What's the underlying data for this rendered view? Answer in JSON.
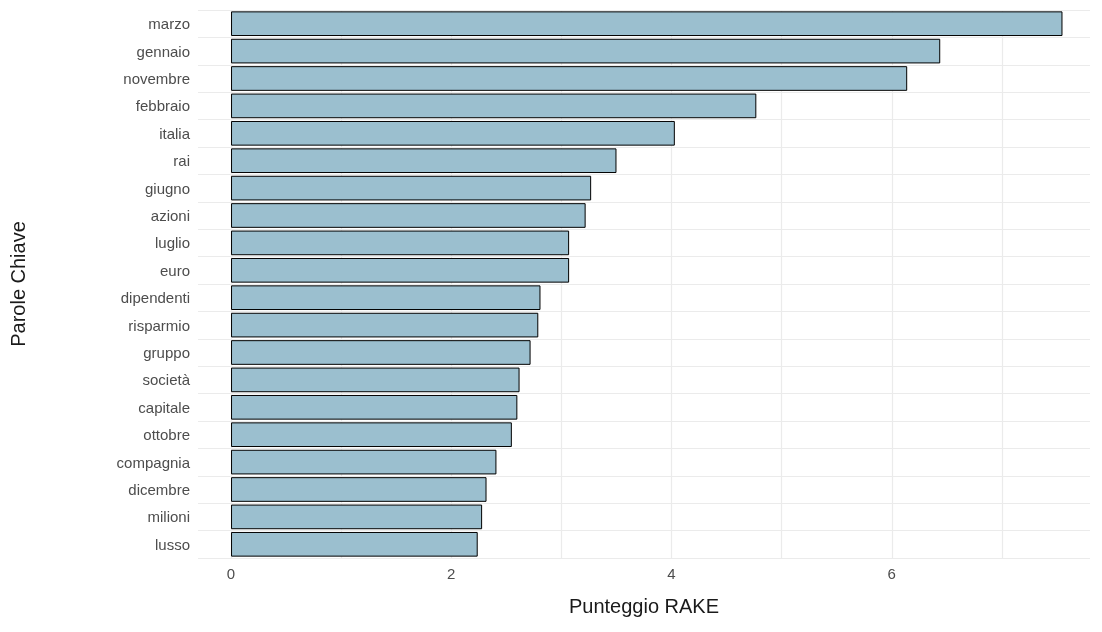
{
  "chart_data": {
    "type": "bar",
    "orientation": "horizontal",
    "xlabel": "Punteggio RAKE",
    "ylabel": "Parole Chiave",
    "categories": [
      "marzo",
      "gennaio",
      "novembre",
      "febbraio",
      "italia",
      "rai",
      "giugno",
      "azioni",
      "luglio",
      "euro",
      "dipendenti",
      "risparmio",
      "gruppo",
      "società",
      "capitale",
      "ottobre",
      "compagnia",
      "dicembre",
      "milioni",
      "lusso"
    ],
    "values": [
      7.55,
      6.44,
      6.14,
      4.77,
      4.03,
      3.5,
      3.27,
      3.22,
      3.07,
      3.07,
      2.81,
      2.79,
      2.72,
      2.62,
      2.6,
      2.55,
      2.41,
      2.32,
      2.28,
      2.24
    ],
    "color": "#9bbfcf",
    "xlim": [
      -0.3,
      7.8
    ],
    "xticks": [
      0,
      {
        "value": 1,
        "label": null
      },
      2,
      {
        "value": 3,
        "label": null
      },
      4,
      {
        "value": 5,
        "label": null
      },
      6,
      {
        "value": 7,
        "label": null
      }
    ],
    "grid": true
  }
}
